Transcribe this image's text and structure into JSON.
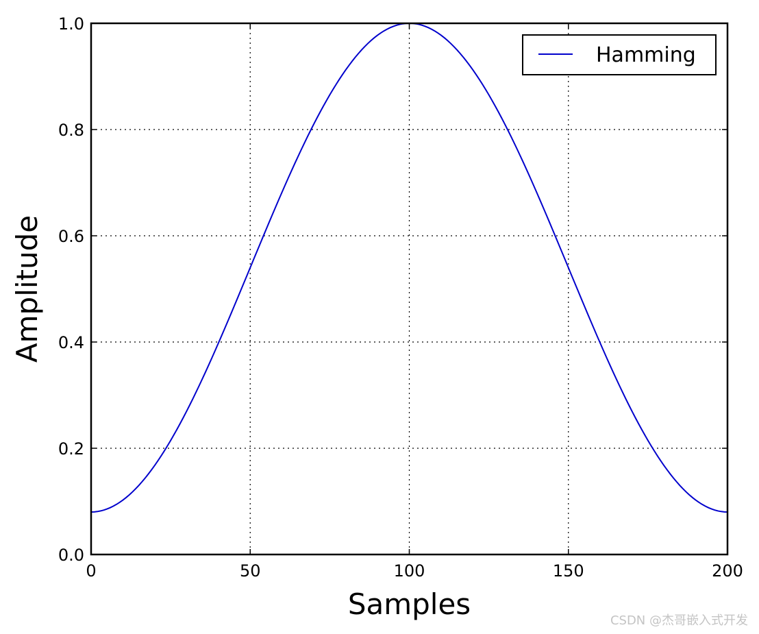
{
  "chart_data": {
    "type": "line",
    "title": "",
    "xlabel": "Samples",
    "ylabel": "Amplitude",
    "xlim": [
      0,
      200
    ],
    "ylim": [
      0.0,
      1.0
    ],
    "xticks": [
      0,
      50,
      100,
      150,
      200
    ],
    "xtick_labels": [
      "0",
      "50",
      "100",
      "150",
      "200"
    ],
    "yticks": [
      0.0,
      0.2,
      0.4,
      0.6,
      0.8,
      1.0
    ],
    "ytick_labels": [
      "0.0",
      "0.2",
      "0.4",
      "0.6",
      "0.8",
      "1.0"
    ],
    "grid": true,
    "grid_style": "dotted",
    "legend_position": "top-right",
    "series": [
      {
        "name": "Hamming",
        "color": "#0000cc",
        "function": "0.54 - 0.46*cos(2*pi*n/(N-1))",
        "N": 201,
        "x": [
          0,
          10,
          20,
          30,
          40,
          50,
          60,
          70,
          80,
          90,
          100,
          110,
          120,
          130,
          140,
          150,
          160,
          170,
          180,
          190,
          200
        ],
        "y": [
          0.08,
          0.102,
          0.168,
          0.27,
          0.398,
          0.54,
          0.682,
          0.81,
          0.912,
          0.978,
          1.0,
          0.978,
          0.912,
          0.81,
          0.682,
          0.54,
          0.398,
          0.27,
          0.168,
          0.102,
          0.08
        ]
      }
    ]
  },
  "watermark": "CSDN @杰哥嵌入式开发"
}
